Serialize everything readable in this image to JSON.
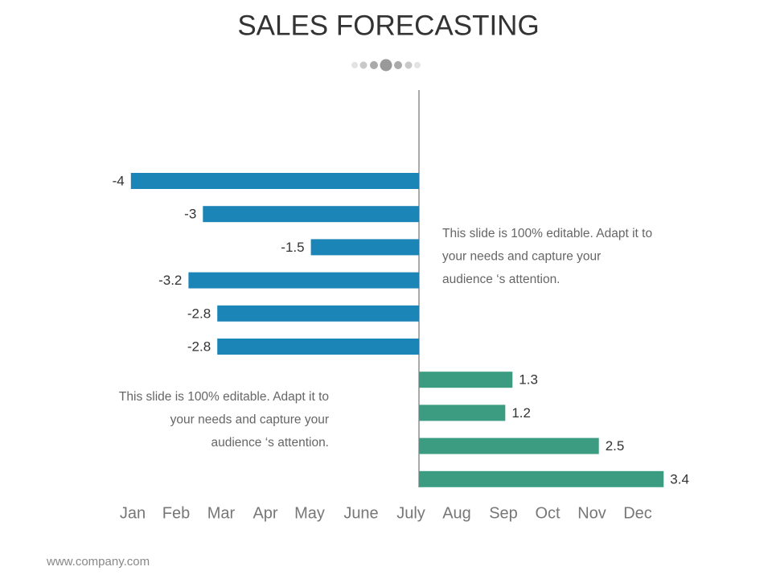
{
  "chart_data": {
    "type": "bar",
    "orientation": "horizontal",
    "title": "SALES FORECASTING",
    "series": [
      {
        "color": "#1b85b8",
        "values": [
          -4,
          -3,
          -1.5,
          -3.2,
          -2.8,
          -2.8
        ]
      },
      {
        "color": "#3c9c82",
        "values": [
          1.3,
          1.2,
          2.5,
          3.4
        ]
      }
    ],
    "xlim": [
      -4.5,
      4.0
    ],
    "x_labels": [
      "Jan",
      "Feb",
      "Mar",
      "Apr",
      "May",
      "June",
      "July",
      "Aug",
      "Sep",
      "Oct",
      "Nov",
      "Dec"
    ],
    "annotations": [
      [
        "This slide is 100% editable. Adapt it to",
        "your needs and capture your",
        "audience ‘s attention."
      ],
      [
        "This slide is 100% editable. Adapt it to",
        "your needs and capture your",
        "audience ‘s attention."
      ]
    ],
    "footer": "www.company.com"
  }
}
